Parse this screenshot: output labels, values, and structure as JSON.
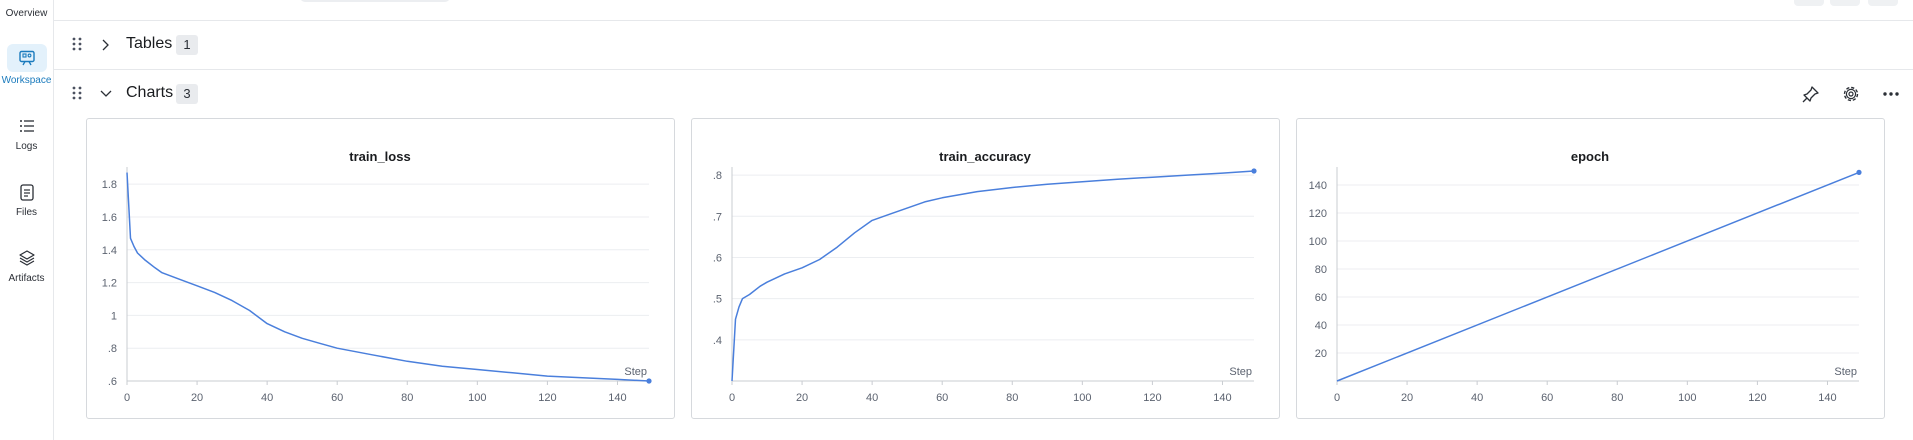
{
  "sidebar": {
    "items": [
      {
        "label": "Overview",
        "icon": "overview-icon"
      },
      {
        "label": "Workspace",
        "icon": "workspace-icon",
        "active": true
      },
      {
        "label": "Logs",
        "icon": "list-icon"
      },
      {
        "label": "Files",
        "icon": "file-icon"
      },
      {
        "label": "Artifacts",
        "icon": "layers-icon"
      }
    ]
  },
  "sections": {
    "tables": {
      "title": "Tables",
      "count": "1"
    },
    "charts": {
      "title": "Charts",
      "count": "3"
    }
  },
  "toolbar": {
    "icons": [
      "pin-icon",
      "gear-icon",
      "more-icon"
    ]
  },
  "colors": {
    "accent": "#1b7bbd",
    "line": "#4a7fdc"
  },
  "chart_data": [
    {
      "type": "line",
      "title": "train_loss",
      "xlabel": "Step",
      "xlim": [
        0,
        149
      ],
      "ylim": [
        0.6,
        1.88
      ],
      "xticks": [
        0,
        20,
        40,
        60,
        80,
        100,
        120,
        140
      ],
      "yticks": [
        0.6,
        0.8,
        1,
        1.2,
        1.4,
        1.6,
        1.8
      ],
      "ytick_labels": [
        ".6",
        ".8",
        "1",
        "1.2",
        "1.4",
        "1.6",
        "1.8"
      ],
      "x": [
        0,
        1,
        2,
        3,
        5,
        8,
        10,
        15,
        20,
        25,
        30,
        35,
        40,
        45,
        50,
        55,
        60,
        70,
        80,
        90,
        100,
        110,
        120,
        130,
        140,
        149
      ],
      "y": [
        1.87,
        1.47,
        1.42,
        1.38,
        1.34,
        1.29,
        1.26,
        1.22,
        1.18,
        1.14,
        1.09,
        1.03,
        0.95,
        0.9,
        0.86,
        0.83,
        0.8,
        0.76,
        0.72,
        0.69,
        0.67,
        0.65,
        0.63,
        0.62,
        0.61,
        0.6
      ],
      "grid": true
    },
    {
      "type": "line",
      "title": "train_accuracy",
      "xlabel": "Step",
      "xlim": [
        0,
        149
      ],
      "ylim": [
        0.3,
        0.81
      ],
      "xticks": [
        0,
        20,
        40,
        60,
        80,
        100,
        120,
        140
      ],
      "yticks": [
        0.4,
        0.5,
        0.6,
        0.7,
        0.8
      ],
      "ytick_labels": [
        ".4",
        ".5",
        ".6",
        ".7",
        ".8"
      ],
      "x": [
        0,
        1,
        2,
        3,
        5,
        8,
        10,
        15,
        20,
        25,
        30,
        35,
        40,
        45,
        50,
        55,
        60,
        70,
        80,
        90,
        100,
        110,
        120,
        130,
        140,
        149
      ],
      "y": [
        0.3,
        0.45,
        0.48,
        0.5,
        0.51,
        0.53,
        0.54,
        0.56,
        0.575,
        0.595,
        0.625,
        0.66,
        0.69,
        0.705,
        0.72,
        0.735,
        0.745,
        0.76,
        0.77,
        0.778,
        0.784,
        0.79,
        0.795,
        0.8,
        0.805,
        0.81
      ],
      "grid": true
    },
    {
      "type": "line",
      "title": "epoch",
      "xlabel": "Step",
      "xlim": [
        0,
        149
      ],
      "ylim": [
        0,
        150
      ],
      "xticks": [
        0,
        20,
        40,
        60,
        80,
        100,
        120,
        140
      ],
      "yticks": [
        20,
        40,
        60,
        80,
        100,
        120,
        140
      ],
      "ytick_labels": [
        "20",
        "40",
        "60",
        "80",
        "100",
        "120",
        "140"
      ],
      "x": [
        0,
        149
      ],
      "y": [
        0,
        149
      ],
      "grid": true
    }
  ]
}
